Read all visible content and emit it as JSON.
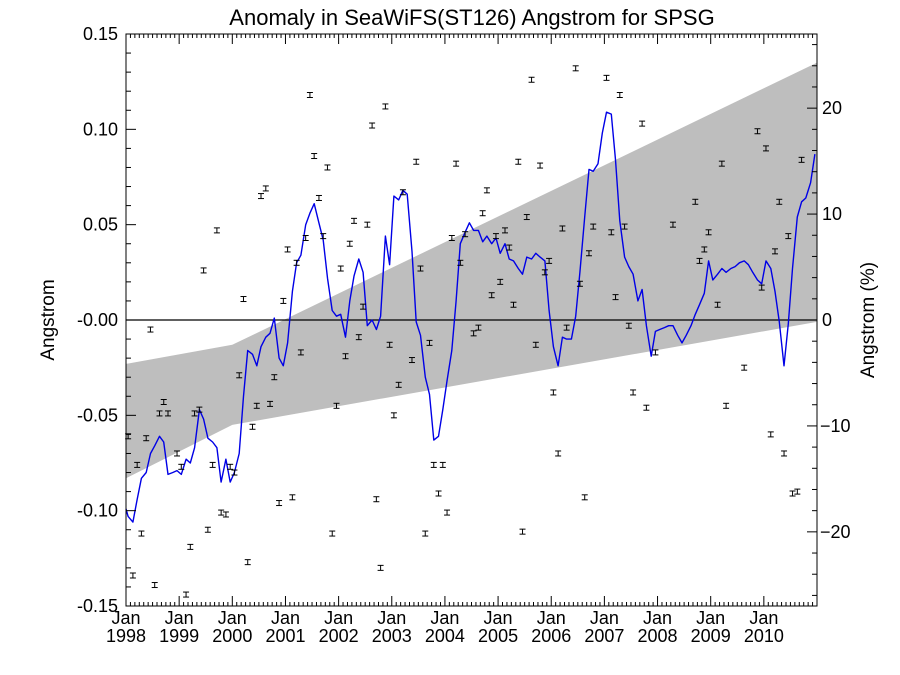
{
  "chart_data": {
    "type": "scatter",
    "title": "Anomaly in SeaWiFS(ST126) Angstrom for SPSG",
    "ylabel": "Angstrom",
    "y2label": "Angstrom (%)",
    "xlim": [
      1998.0,
      2011.0
    ],
    "ylim": [
      -0.15,
      0.15
    ],
    "y2lim": [
      -27,
      27
    ],
    "x_ticks": [
      {
        "year": "1998",
        "month": "Jan",
        "x": 1998
      },
      {
        "year": "1999",
        "month": "Jan",
        "x": 1999
      },
      {
        "year": "2000",
        "month": "Jan",
        "x": 2000
      },
      {
        "year": "2001",
        "month": "Jan",
        "x": 2001
      },
      {
        "year": "2002",
        "month": "Jan",
        "x": 2002
      },
      {
        "year": "2003",
        "month": "Jan",
        "x": 2003
      },
      {
        "year": "2004",
        "month": "Jan",
        "x": 2004
      },
      {
        "year": "2005",
        "month": "Jan",
        "x": 2005
      },
      {
        "year": "2006",
        "month": "Jan",
        "x": 2006
      },
      {
        "year": "2007",
        "month": "Jan",
        "x": 2007
      },
      {
        "year": "2008",
        "month": "Jan",
        "x": 2008
      },
      {
        "year": "2009",
        "month": "Jan",
        "x": 2009
      },
      {
        "year": "2010",
        "month": "Jan",
        "x": 2010
      }
    ],
    "y_ticks": [
      {
        "label": "0.15",
        "v": 0.15
      },
      {
        "label": "0.10",
        "v": 0.1
      },
      {
        "label": "0.05",
        "v": 0.05
      },
      {
        "label": "-0.00",
        "v": 0.0
      },
      {
        "label": "-0.05",
        "v": -0.05
      },
      {
        "label": "-0.10",
        "v": -0.1
      },
      {
        "label": "-0.15",
        "v": -0.15
      }
    ],
    "y2_ticks": [
      {
        "label": "20",
        "v": 20
      },
      {
        "label": "10",
        "v": 10
      },
      {
        "label": "0",
        "v": 0
      },
      {
        "label": "−10",
        "v": -10
      },
      {
        "label": "−20",
        "v": -20
      }
    ],
    "trend_band": [
      {
        "x": 1998.0,
        "upper": -0.023,
        "lower": -0.083
      },
      {
        "x": 2000.0,
        "upper": -0.013,
        "lower": -0.055
      },
      {
        "x": 2011.0,
        "upper": 0.135,
        "lower": -0.001
      }
    ],
    "zero_line": 0.0,
    "points": [
      {
        "x": 1998.04,
        "y": -0.061
      },
      {
        "x": 1998.13,
        "y": -0.134
      },
      {
        "x": 1998.21,
        "y": -0.076
      },
      {
        "x": 1998.29,
        "y": -0.112
      },
      {
        "x": 1998.38,
        "y": -0.062
      },
      {
        "x": 1998.46,
        "y": -0.005
      },
      {
        "x": 1998.54,
        "y": -0.139
      },
      {
        "x": 1998.63,
        "y": -0.049
      },
      {
        "x": 1998.71,
        "y": -0.043
      },
      {
        "x": 1998.79,
        "y": -0.049
      },
      {
        "x": 1998.96,
        "y": -0.07
      },
      {
        "x": 1999.04,
        "y": -0.077
      },
      {
        "x": 1999.13,
        "y": -0.144
      },
      {
        "x": 1999.21,
        "y": -0.119
      },
      {
        "x": 1999.29,
        "y": -0.049
      },
      {
        "x": 1999.38,
        "y": -0.047
      },
      {
        "x": 1999.46,
        "y": 0.026
      },
      {
        "x": 1999.54,
        "y": -0.11
      },
      {
        "x": 1999.63,
        "y": -0.076
      },
      {
        "x": 1999.71,
        "y": 0.047
      },
      {
        "x": 1999.79,
        "y": -0.101
      },
      {
        "x": 1999.88,
        "y": -0.102
      },
      {
        "x": 1999.96,
        "y": -0.077
      },
      {
        "x": 2000.04,
        "y": -0.08
      },
      {
        "x": 2000.13,
        "y": -0.029
      },
      {
        "x": 2000.21,
        "y": 0.011
      },
      {
        "x": 2000.29,
        "y": -0.127
      },
      {
        "x": 2000.38,
        "y": -0.056
      },
      {
        "x": 2000.46,
        "y": -0.045
      },
      {
        "x": 2000.54,
        "y": 0.065
      },
      {
        "x": 2000.63,
        "y": 0.069
      },
      {
        "x": 2000.71,
        "y": -0.044
      },
      {
        "x": 2000.79,
        "y": -0.03
      },
      {
        "x": 2000.88,
        "y": -0.096
      },
      {
        "x": 2000.96,
        "y": 0.01
      },
      {
        "x": 2001.04,
        "y": 0.037
      },
      {
        "x": 2001.13,
        "y": -0.093
      },
      {
        "x": 2001.21,
        "y": 0.03
      },
      {
        "x": 2001.29,
        "y": -0.017
      },
      {
        "x": 2001.38,
        "y": 0.043
      },
      {
        "x": 2001.46,
        "y": 0.118
      },
      {
        "x": 2001.54,
        "y": 0.086
      },
      {
        "x": 2001.63,
        "y": 0.064
      },
      {
        "x": 2001.71,
        "y": 0.044
      },
      {
        "x": 2001.79,
        "y": 0.08
      },
      {
        "x": 2001.88,
        "y": -0.112
      },
      {
        "x": 2001.96,
        "y": -0.045
      },
      {
        "x": 2002.04,
        "y": 0.027
      },
      {
        "x": 2002.13,
        "y": -0.019
      },
      {
        "x": 2002.21,
        "y": 0.04
      },
      {
        "x": 2002.29,
        "y": 0.052
      },
      {
        "x": 2002.38,
        "y": -0.009
      },
      {
        "x": 2002.46,
        "y": 0.007
      },
      {
        "x": 2002.54,
        "y": 0.05
      },
      {
        "x": 2002.63,
        "y": 0.102
      },
      {
        "x": 2002.71,
        "y": -0.094
      },
      {
        "x": 2002.79,
        "y": -0.13
      },
      {
        "x": 2002.88,
        "y": 0.112
      },
      {
        "x": 2002.96,
        "y": -0.013
      },
      {
        "x": 2003.04,
        "y": -0.05
      },
      {
        "x": 2003.13,
        "y": -0.034
      },
      {
        "x": 2003.21,
        "y": 0.067
      },
      {
        "x": 2003.38,
        "y": -0.021
      },
      {
        "x": 2003.46,
        "y": 0.083
      },
      {
        "x": 2003.54,
        "y": 0.027
      },
      {
        "x": 2003.63,
        "y": -0.112
      },
      {
        "x": 2003.71,
        "y": -0.012
      },
      {
        "x": 2003.79,
        "y": -0.076
      },
      {
        "x": 2003.88,
        "y": -0.091
      },
      {
        "x": 2003.96,
        "y": -0.076
      },
      {
        "x": 2004.04,
        "y": -0.101
      },
      {
        "x": 2004.13,
        "y": 0.043
      },
      {
        "x": 2004.21,
        "y": 0.082
      },
      {
        "x": 2004.29,
        "y": 0.03
      },
      {
        "x": 2004.38,
        "y": 0.045
      },
      {
        "x": 2004.54,
        "y": -0.007
      },
      {
        "x": 2004.63,
        "y": -0.004
      },
      {
        "x": 2004.71,
        "y": 0.056
      },
      {
        "x": 2004.79,
        "y": 0.068
      },
      {
        "x": 2004.88,
        "y": 0.013
      },
      {
        "x": 2004.96,
        "y": 0.044
      },
      {
        "x": 2005.04,
        "y": 0.02
      },
      {
        "x": 2005.13,
        "y": 0.047
      },
      {
        "x": 2005.21,
        "y": 0.038
      },
      {
        "x": 2005.29,
        "y": 0.008
      },
      {
        "x": 2005.38,
        "y": 0.083
      },
      {
        "x": 2005.46,
        "y": -0.111
      },
      {
        "x": 2005.54,
        "y": 0.054
      },
      {
        "x": 2005.63,
        "y": 0.126
      },
      {
        "x": 2005.71,
        "y": -0.013
      },
      {
        "x": 2005.79,
        "y": 0.081
      },
      {
        "x": 2005.88,
        "y": 0.025
      },
      {
        "x": 2005.96,
        "y": 0.031
      },
      {
        "x": 2006.04,
        "y": -0.038
      },
      {
        "x": 2006.13,
        "y": -0.07
      },
      {
        "x": 2006.21,
        "y": 0.048
      },
      {
        "x": 2006.29,
        "y": -0.004
      },
      {
        "x": 2006.46,
        "y": 0.132
      },
      {
        "x": 2006.54,
        "y": 0.019
      },
      {
        "x": 2006.63,
        "y": -0.093
      },
      {
        "x": 2006.71,
        "y": 0.035
      },
      {
        "x": 2006.79,
        "y": 0.049
      },
      {
        "x": 2007.04,
        "y": 0.127
      },
      {
        "x": 2007.13,
        "y": 0.046
      },
      {
        "x": 2007.21,
        "y": 0.012
      },
      {
        "x": 2007.29,
        "y": 0.118
      },
      {
        "x": 2007.38,
        "y": 0.049
      },
      {
        "x": 2007.46,
        "y": -0.003
      },
      {
        "x": 2007.54,
        "y": -0.038
      },
      {
        "x": 2007.71,
        "y": 0.103
      },
      {
        "x": 2007.79,
        "y": -0.046
      },
      {
        "x": 2007.96,
        "y": -0.017
      },
      {
        "x": 2008.29,
        "y": 0.05
      },
      {
        "x": 2008.71,
        "y": 0.062
      },
      {
        "x": 2008.79,
        "y": 0.031
      },
      {
        "x": 2008.88,
        "y": 0.037
      },
      {
        "x": 2008.96,
        "y": 0.046
      },
      {
        "x": 2009.13,
        "y": 0.008
      },
      {
        "x": 2009.21,
        "y": 0.082
      },
      {
        "x": 2009.29,
        "y": -0.045
      },
      {
        "x": 2009.63,
        "y": -0.025
      },
      {
        "x": 2009.88,
        "y": 0.099
      },
      {
        "x": 2009.96,
        "y": 0.017
      },
      {
        "x": 2010.04,
        "y": 0.09
      },
      {
        "x": 2010.13,
        "y": -0.06
      },
      {
        "x": 2010.21,
        "y": 0.036
      },
      {
        "x": 2010.29,
        "y": 0.062
      },
      {
        "x": 2010.38,
        "y": -0.07
      },
      {
        "x": 2010.46,
        "y": 0.044
      },
      {
        "x": 2010.54,
        "y": -0.091
      },
      {
        "x": 2010.63,
        "y": -0.09
      },
      {
        "x": 2010.71,
        "y": 0.084
      }
    ],
    "smooth_line": [
      [
        1998.0,
        -0.099
      ],
      [
        1998.04,
        -0.103
      ],
      [
        1998.13,
        -0.106
      ],
      [
        1998.21,
        -0.094
      ],
      [
        1998.29,
        -0.083
      ],
      [
        1998.38,
        -0.08
      ],
      [
        1998.46,
        -0.07
      ],
      [
        1998.54,
        -0.066
      ],
      [
        1998.63,
        -0.061
      ],
      [
        1998.71,
        -0.064
      ],
      [
        1998.79,
        -0.081
      ],
      [
        1998.88,
        -0.08
      ],
      [
        1998.96,
        -0.079
      ],
      [
        1999.04,
        -0.081
      ],
      [
        1999.13,
        -0.073
      ],
      [
        1999.21,
        -0.075
      ],
      [
        1999.29,
        -0.067
      ],
      [
        1999.38,
        -0.047
      ],
      [
        1999.46,
        -0.052
      ],
      [
        1999.54,
        -0.062
      ],
      [
        1999.63,
        -0.064
      ],
      [
        1999.71,
        -0.067
      ],
      [
        1999.79,
        -0.085
      ],
      [
        1999.88,
        -0.073
      ],
      [
        1999.96,
        -0.085
      ],
      [
        2000.04,
        -0.08
      ],
      [
        2000.13,
        -0.07
      ],
      [
        2000.21,
        -0.04
      ],
      [
        2000.29,
        -0.016
      ],
      [
        2000.38,
        -0.018
      ],
      [
        2000.46,
        -0.024
      ],
      [
        2000.54,
        -0.014
      ],
      [
        2000.63,
        -0.009
      ],
      [
        2000.71,
        -0.007
      ],
      [
        2000.79,
        0.001
      ],
      [
        2000.88,
        -0.02
      ],
      [
        2000.96,
        -0.024
      ],
      [
        2001.04,
        -0.012
      ],
      [
        2001.13,
        0.015
      ],
      [
        2001.21,
        0.03
      ],
      [
        2001.29,
        0.034
      ],
      [
        2001.38,
        0.05
      ],
      [
        2001.46,
        0.056
      ],
      [
        2001.54,
        0.061
      ],
      [
        2001.63,
        0.051
      ],
      [
        2001.71,
        0.042
      ],
      [
        2001.79,
        0.022
      ],
      [
        2001.88,
        0.005
      ],
      [
        2001.96,
        0.002
      ],
      [
        2002.04,
        0.003
      ],
      [
        2002.13,
        -0.009
      ],
      [
        2002.21,
        0.01
      ],
      [
        2002.29,
        0.023
      ],
      [
        2002.38,
        0.032
      ],
      [
        2002.46,
        0.025
      ],
      [
        2002.54,
        -0.003
      ],
      [
        2002.63,
        -0.0
      ],
      [
        2002.71,
        -0.005
      ],
      [
        2002.79,
        0.002
      ],
      [
        2002.88,
        0.044
      ],
      [
        2002.96,
        0.029
      ],
      [
        2003.04,
        0.065
      ],
      [
        2003.13,
        0.063
      ],
      [
        2003.21,
        0.068
      ],
      [
        2003.29,
        0.066
      ],
      [
        2003.38,
        0.036
      ],
      [
        2003.46,
        -0.001
      ],
      [
        2003.54,
        -0.008
      ],
      [
        2003.63,
        -0.03
      ],
      [
        2003.71,
        -0.039
      ],
      [
        2003.79,
        -0.063
      ],
      [
        2003.88,
        -0.061
      ],
      [
        2003.96,
        -0.047
      ],
      [
        2004.04,
        -0.032
      ],
      [
        2004.13,
        -0.016
      ],
      [
        2004.21,
        0.01
      ],
      [
        2004.29,
        0.04
      ],
      [
        2004.38,
        0.046
      ],
      [
        2004.46,
        0.051
      ],
      [
        2004.54,
        0.047
      ],
      [
        2004.63,
        0.047
      ],
      [
        2004.71,
        0.041
      ],
      [
        2004.79,
        0.044
      ],
      [
        2004.88,
        0.04
      ],
      [
        2004.96,
        0.043
      ],
      [
        2005.04,
        0.035
      ],
      [
        2005.13,
        0.04
      ],
      [
        2005.21,
        0.032
      ],
      [
        2005.29,
        0.031
      ],
      [
        2005.38,
        0.027
      ],
      [
        2005.46,
        0.024
      ],
      [
        2005.54,
        0.033
      ],
      [
        2005.63,
        0.032
      ],
      [
        2005.71,
        0.035
      ],
      [
        2005.79,
        0.033
      ],
      [
        2005.88,
        0.031
      ],
      [
        2005.96,
        0.005
      ],
      [
        2006.04,
        -0.014
      ],
      [
        2006.13,
        -0.024
      ],
      [
        2006.21,
        -0.009
      ],
      [
        2006.29,
        -0.01
      ],
      [
        2006.38,
        -0.01
      ],
      [
        2006.46,
        0.002
      ],
      [
        2006.54,
        0.025
      ],
      [
        2006.63,
        0.054
      ],
      [
        2006.71,
        0.079
      ],
      [
        2006.79,
        0.078
      ],
      [
        2006.88,
        0.082
      ],
      [
        2006.96,
        0.098
      ],
      [
        2007.04,
        0.109
      ],
      [
        2007.13,
        0.108
      ],
      [
        2007.21,
        0.084
      ],
      [
        2007.29,
        0.052
      ],
      [
        2007.38,
        0.033
      ],
      [
        2007.46,
        0.028
      ],
      [
        2007.54,
        0.024
      ],
      [
        2007.63,
        0.01
      ],
      [
        2007.71,
        0.016
      ],
      [
        2007.79,
        -0.003
      ],
      [
        2007.88,
        -0.019
      ],
      [
        2007.96,
        -0.006
      ],
      [
        2008.04,
        -0.005
      ],
      [
        2008.13,
        -0.004
      ],
      [
        2008.21,
        -0.003
      ],
      [
        2008.29,
        -0.003
      ],
      [
        2008.38,
        -0.008
      ],
      [
        2008.46,
        -0.012
      ],
      [
        2008.54,
        -0.008
      ],
      [
        2008.63,
        -0.003
      ],
      [
        2008.71,
        0.003
      ],
      [
        2008.79,
        0.008
      ],
      [
        2008.88,
        0.014
      ],
      [
        2008.96,
        0.031
      ],
      [
        2009.04,
        0.021
      ],
      [
        2009.13,
        0.024
      ],
      [
        2009.21,
        0.027
      ],
      [
        2009.29,
        0.025
      ],
      [
        2009.38,
        0.027
      ],
      [
        2009.46,
        0.028
      ],
      [
        2009.54,
        0.03
      ],
      [
        2009.63,
        0.031
      ],
      [
        2009.71,
        0.029
      ],
      [
        2009.79,
        0.025
      ],
      [
        2009.88,
        0.021
      ],
      [
        2009.96,
        0.019
      ],
      [
        2010.04,
        0.031
      ],
      [
        2010.13,
        0.027
      ],
      [
        2010.21,
        0.015
      ],
      [
        2010.29,
        -0.001
      ],
      [
        2010.38,
        -0.024
      ],
      [
        2010.46,
        -0.002
      ],
      [
        2010.54,
        0.027
      ],
      [
        2010.63,
        0.054
      ],
      [
        2010.71,
        0.062
      ],
      [
        2010.79,
        0.064
      ],
      [
        2010.88,
        0.072
      ],
      [
        2010.96,
        0.087
      ]
    ],
    "colors": {
      "band": "#bebebe",
      "line": "#0000e6",
      "points": "#000000",
      "zero": "#000000"
    },
    "grid": false,
    "legend": "none"
  }
}
